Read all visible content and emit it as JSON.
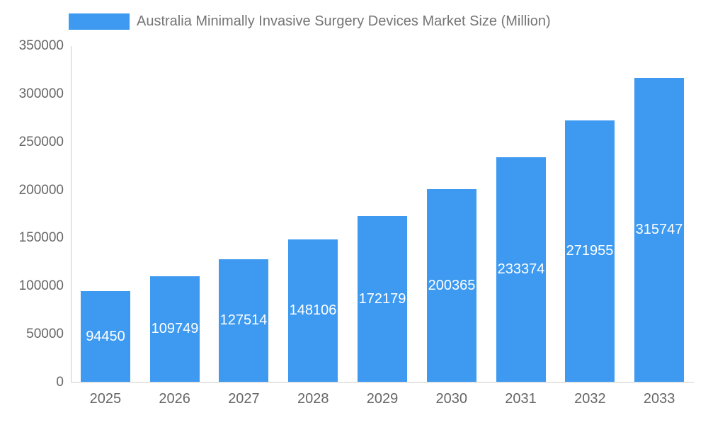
{
  "legend": {
    "label": "Australia Minimally Invasive Surgery Devices Market Size (Million)"
  },
  "chart_data": {
    "type": "bar",
    "title": "Australia Minimally Invasive Surgery Devices Market Size (Million)",
    "categories": [
      "2025",
      "2026",
      "2027",
      "2028",
      "2029",
      "2030",
      "2031",
      "2032",
      "2033"
    ],
    "values": [
      94450,
      109749,
      127514,
      148106,
      172179,
      200365,
      233374,
      271955,
      315747
    ],
    "xlabel": "",
    "ylabel": "",
    "ylim": [
      0,
      350000
    ],
    "ytick_step": 50000,
    "ytick_labels": [
      "0",
      "50000",
      "100000",
      "150000",
      "200000",
      "250000",
      "300000",
      "350000"
    ],
    "grid": false,
    "legend_position": "top",
    "bar_color": "#3D9AF0",
    "value_label_color": "#ffffff",
    "axis_text_color": "#666666",
    "axis_line_color": "#cccccc"
  }
}
